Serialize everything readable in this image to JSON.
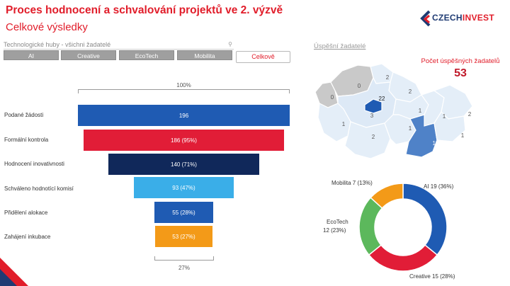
{
  "header": {
    "title": "Proces hodnocení a schvalování projektů ve 2. výzvě",
    "subtitle": "Celkové výsledky"
  },
  "logo": {
    "part1": "CZECH",
    "part2": "INVEST"
  },
  "filter": {
    "label": "Technologické huby - všichni žadatelé",
    "buttons": [
      "AI",
      "Creative",
      "EcoTech",
      "Mobilita"
    ],
    "active": "Celkově"
  },
  "funnel": {
    "top_pct": "100%",
    "bottom_pct": "27%",
    "stages": [
      {
        "label": "Podané žádosti",
        "value": 196,
        "display": "196",
        "color": "#1f5bb3"
      },
      {
        "label": "Formální kontrola",
        "value": 186,
        "display": "186 (95%)",
        "color": "#e11d37"
      },
      {
        "label": "Hodnocení inovativnosti",
        "value": 140,
        "display": "140 (71%)",
        "color": "#10285a"
      },
      {
        "label": "Schváleno hodnotící komisí",
        "value": 93,
        "display": "93 (47%)",
        "color": "#3aaee8"
      },
      {
        "label": "Přidělení alokace",
        "value": 55,
        "display": "55 (28%)",
        "color": "#1f5bb3"
      },
      {
        "label": "Zahájení inkubace",
        "value": 53,
        "display": "53 (27%)",
        "color": "#f39a18"
      }
    ]
  },
  "map": {
    "link": "Úspěšní žadatelé",
    "kpi_label": "Počet úspěšných žadatelů",
    "kpi_value": "53",
    "regions": [
      {
        "name": "Karlovarský",
        "value": "0"
      },
      {
        "name": "Ústecký",
        "value": "0"
      },
      {
        "name": "Liberecký",
        "value": "2"
      },
      {
        "name": "Praha",
        "value": "22"
      },
      {
        "name": "Královéhradecký",
        "value": "2"
      },
      {
        "name": "Středočeský",
        "value": "3"
      },
      {
        "name": "Plzeňský",
        "value": "1"
      },
      {
        "name": "Pardubický",
        "value": "1"
      },
      {
        "name": "Olomoucký",
        "value": "1"
      },
      {
        "name": "Moravskoslezský",
        "value": "2"
      },
      {
        "name": "Vysočina",
        "value": "1"
      },
      {
        "name": "Jihočeský",
        "value": "2"
      },
      {
        "name": "Jihomoravský",
        "value": "15"
      },
      {
        "name": "Zlínský",
        "value": "1"
      }
    ]
  },
  "chart_data": {
    "type": "pie",
    "donut": true,
    "series": [
      {
        "name": "AI",
        "value": 19,
        "label": "AI 19 (36%)",
        "color": "#1f5bb3"
      },
      {
        "name": "Creative",
        "value": 15,
        "label": "Creative 15 (28%)",
        "color": "#e11d37"
      },
      {
        "name": "EcoTech",
        "value": 12,
        "label": "EcoTech",
        "label2": "12 (23%)",
        "color": "#5cb85c"
      },
      {
        "name": "Mobilita",
        "value": 7,
        "label": "Mobilita 7 (13%)",
        "color": "#f39a18"
      }
    ]
  }
}
